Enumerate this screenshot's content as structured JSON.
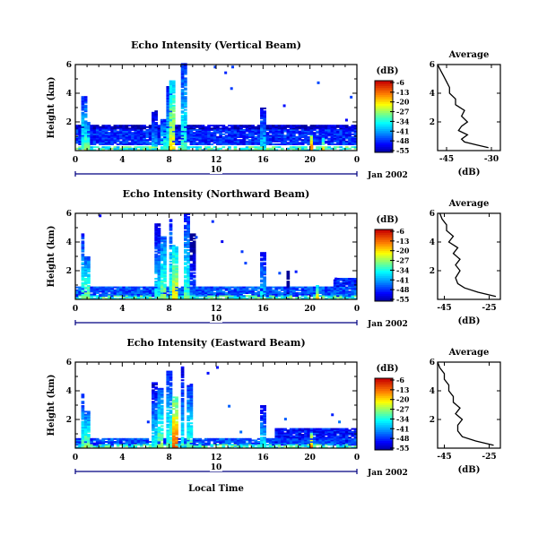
{
  "x_axis_label": "Local Time",
  "date_label": "Jan 2002",
  "colorbar": {
    "unit": "(dB)",
    "ticks": [
      "-6",
      "-13",
      "-20",
      "-27",
      "-34",
      "-41",
      "-48",
      "-55"
    ]
  },
  "average_title": "Average",
  "average_xlabel": "(dB)",
  "chart_data": [
    {
      "type": "heatmap",
      "title": "Echo Intensity (Vertical Beam)",
      "ylabel": "Height (km)",
      "xticks": [
        "0",
        "4",
        "8",
        "12",
        "16",
        "20",
        "0"
      ],
      "xlim": [
        0,
        24
      ],
      "ylim": [
        0,
        6
      ],
      "yticks": [
        2,
        4,
        6
      ],
      "day_label": "10",
      "value_range_db": [
        -55,
        -6
      ],
      "layers": [
        {
          "t0": 0,
          "t1": 24,
          "h0": 0.4,
          "h1": 1.5,
          "db": -47
        },
        {
          "t0": 0,
          "t1": 24,
          "h0": 1.5,
          "h1": 1.8,
          "db": -52
        }
      ],
      "plumes": [
        {
          "t": 0.6,
          "top": 3.8,
          "db": -30
        },
        {
          "t": 0.9,
          "top": 2.0,
          "db": -27
        },
        {
          "t": 6.7,
          "top": 2.8,
          "db": -36
        },
        {
          "t": 7.4,
          "top": 2.2,
          "db": -30
        },
        {
          "t": 7.8,
          "top": 4.6,
          "db": -32
        },
        {
          "t": 8.1,
          "top": 4.8,
          "db": -20
        },
        {
          "t": 9.2,
          "top": 6.0,
          "db": -30
        },
        {
          "t": 15.8,
          "top": 3.0,
          "db": -34
        },
        {
          "t": 20.0,
          "top": 1.2,
          "db": -13
        },
        {
          "t": 21.0,
          "top": 0.8,
          "db": -20
        }
      ],
      "speckles": [
        [
          11.8,
          5.8
        ],
        [
          12.7,
          5.4
        ],
        [
          13.3,
          5.8
        ],
        [
          13.2,
          4.3
        ],
        [
          20.6,
          4.7
        ],
        [
          23.4,
          3.7
        ],
        [
          17.7,
          3.1
        ],
        [
          23.0,
          2.1
        ]
      ],
      "average": {
        "xticks": [
          "-45",
          "-30"
        ],
        "xlim": [
          -48,
          -27
        ],
        "yticks": [
          2,
          4,
          6
        ],
        "profile": [
          [
            -31,
            0.2
          ],
          [
            -35,
            0.4
          ],
          [
            -39,
            0.6
          ],
          [
            -40,
            0.8
          ],
          [
            -38,
            1.1
          ],
          [
            -41,
            1.4
          ],
          [
            -40,
            1.7
          ],
          [
            -38,
            2.0
          ],
          [
            -40,
            2.4
          ],
          [
            -39,
            2.8
          ],
          [
            -42,
            3.2
          ],
          [
            -42,
            3.6
          ],
          [
            -44,
            4.0
          ],
          [
            -44,
            4.4
          ],
          [
            -45,
            4.8
          ],
          [
            -46,
            5.2
          ],
          [
            -47,
            5.6
          ],
          [
            -48,
            6.0
          ]
        ]
      }
    },
    {
      "type": "heatmap",
      "title": "Echo Intensity (Northward Beam)",
      "ylabel": "Height (km)",
      "xticks": [
        "0",
        "4",
        "8",
        "12",
        "16",
        "20",
        "0"
      ],
      "xlim": [
        0,
        24
      ],
      "ylim": [
        0,
        6
      ],
      "yticks": [
        2,
        4,
        6
      ],
      "day_label": "10",
      "value_range_db": [
        -55,
        -6
      ],
      "layers": [
        {
          "t0": 0,
          "t1": 24,
          "h0": 0.2,
          "h1": 0.8,
          "db": -45
        },
        {
          "t0": 22,
          "t1": 24,
          "h0": 0.2,
          "h1": 1.5,
          "db": -48
        }
      ],
      "plumes": [
        {
          "t": 0.5,
          "top": 4.6,
          "db": -30
        },
        {
          "t": 0.8,
          "top": 3.0,
          "db": -27
        },
        {
          "t": 6.8,
          "top": 5.2,
          "db": -34
        },
        {
          "t": 7.3,
          "top": 4.4,
          "db": -27
        },
        {
          "t": 8.0,
          "top": 5.5,
          "db": -30
        },
        {
          "t": 8.4,
          "top": 3.8,
          "db": -20
        },
        {
          "t": 9.4,
          "top": 5.9,
          "db": -30
        },
        {
          "t": 9.8,
          "top": 4.6,
          "db": -41
        },
        {
          "t": 15.8,
          "top": 3.3,
          "db": -34
        },
        {
          "t": 18.0,
          "top": 2.0,
          "db": -48
        },
        {
          "t": 20.5,
          "top": 1.0,
          "db": -20
        }
      ],
      "speckles": [
        [
          2.0,
          5.8
        ],
        [
          11.6,
          5.4
        ],
        [
          10.2,
          4.3
        ],
        [
          12.4,
          4.0
        ],
        [
          14.1,
          3.3
        ],
        [
          14.4,
          2.5
        ],
        [
          17.3,
          1.8
        ],
        [
          18.7,
          1.9
        ],
        [
          22.1,
          1.4
        ]
      ],
      "average": {
        "xticks": [
          "-45",
          "-25"
        ],
        "xlim": [
          -48,
          -20
        ],
        "yticks": [
          2,
          4,
          6
        ],
        "profile": [
          [
            -22,
            0.2
          ],
          [
            -30,
            0.5
          ],
          [
            -36,
            0.8
          ],
          [
            -39,
            1.1
          ],
          [
            -40,
            1.5
          ],
          [
            -38,
            2.0
          ],
          [
            -40,
            2.4
          ],
          [
            -38,
            2.8
          ],
          [
            -41,
            3.2
          ],
          [
            -39,
            3.6
          ],
          [
            -43,
            4.0
          ],
          [
            -41,
            4.4
          ],
          [
            -44,
            4.8
          ],
          [
            -44,
            5.2
          ],
          [
            -46,
            5.6
          ],
          [
            -47,
            6.0
          ]
        ]
      }
    },
    {
      "type": "heatmap",
      "title": "Echo Intensity (Eastward Beam)",
      "ylabel": "Height (km)",
      "xticks": [
        "0",
        "4",
        "8",
        "12",
        "16",
        "20",
        "0"
      ],
      "xlim": [
        0,
        24
      ],
      "ylim": [
        0,
        6
      ],
      "yticks": [
        2,
        4,
        6
      ],
      "day_label": "10",
      "value_range_db": [
        -55,
        -6
      ],
      "layers": [
        {
          "t0": 0,
          "t1": 24,
          "h0": 0.2,
          "h1": 0.7,
          "db": -45
        },
        {
          "t0": 17,
          "t1": 24,
          "h0": 0.3,
          "h1": 1.4,
          "db": -48
        }
      ],
      "plumes": [
        {
          "t": 0.5,
          "top": 3.8,
          "db": -30
        },
        {
          "t": 0.8,
          "top": 2.6,
          "db": -27
        },
        {
          "t": 6.7,
          "top": 4.6,
          "db": -34
        },
        {
          "t": 7.2,
          "top": 4.2,
          "db": -27
        },
        {
          "t": 7.9,
          "top": 5.3,
          "db": -30
        },
        {
          "t": 8.3,
          "top": 3.6,
          "db": -13
        },
        {
          "t": 9.0,
          "top": 5.6,
          "db": -34
        },
        {
          "t": 9.6,
          "top": 4.5,
          "db": -30
        },
        {
          "t": 15.8,
          "top": 3.0,
          "db": -34
        },
        {
          "t": 20.0,
          "top": 1.0,
          "db": -13
        }
      ],
      "speckles": [
        [
          12.0,
          5.6
        ],
        [
          11.2,
          5.2
        ],
        [
          13.0,
          2.9
        ],
        [
          6.1,
          1.8
        ],
        [
          17.8,
          2.0
        ],
        [
          21.8,
          2.3
        ],
        [
          22.4,
          1.8
        ],
        [
          14.0,
          1.1
        ]
      ],
      "average": {
        "xticks": [
          "-45",
          "-25"
        ],
        "xlim": [
          -48,
          -20
        ],
        "yticks": [
          2,
          4,
          6
        ],
        "profile": [
          [
            -23,
            0.2
          ],
          [
            -31,
            0.5
          ],
          [
            -37,
            0.8
          ],
          [
            -39,
            1.2
          ],
          [
            -39,
            1.6
          ],
          [
            -37,
            2.0
          ],
          [
            -40,
            2.4
          ],
          [
            -38,
            2.8
          ],
          [
            -41,
            3.2
          ],
          [
            -41,
            3.6
          ],
          [
            -43,
            4.0
          ],
          [
            -43,
            4.4
          ],
          [
            -45,
            4.8
          ],
          [
            -45,
            5.2
          ],
          [
            -47,
            5.6
          ],
          [
            -48,
            6.0
          ]
        ]
      }
    }
  ]
}
